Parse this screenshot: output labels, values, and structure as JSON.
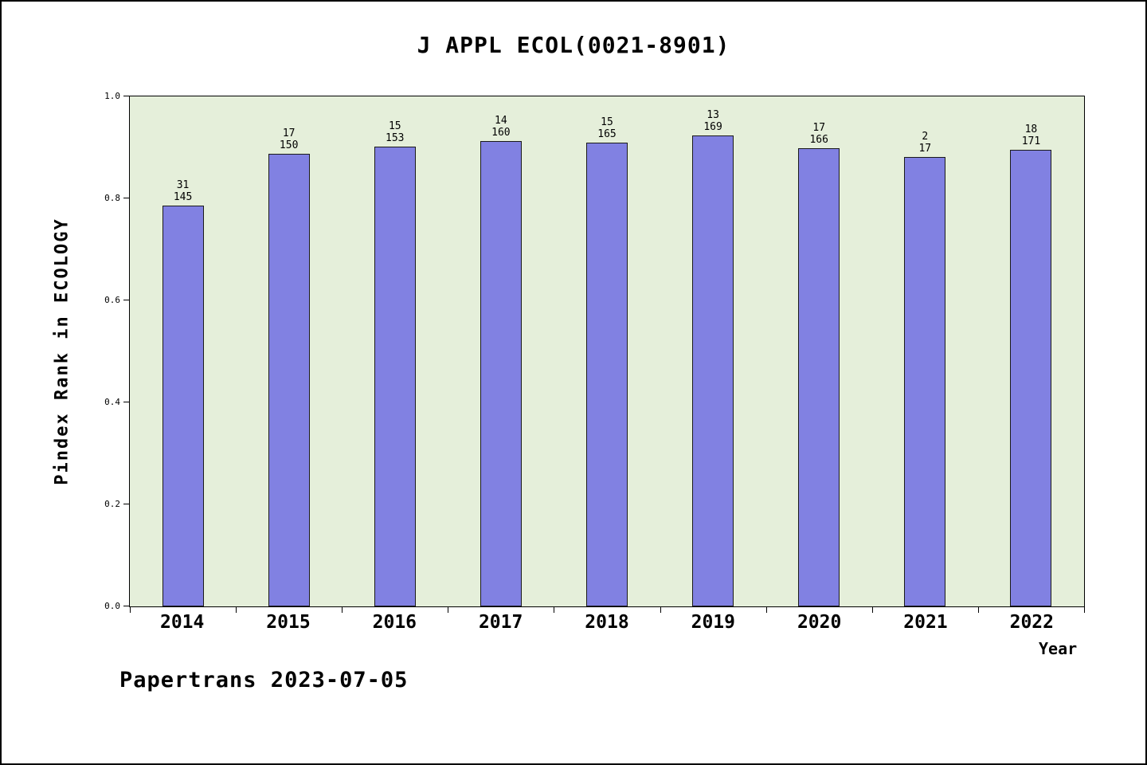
{
  "title": "J APPL ECOL(0021-8901)",
  "footer": "Papertrans 2023-07-05",
  "chart_data": {
    "type": "bar",
    "title": "J APPL ECOL(0021-8901)",
    "xlabel": "Year",
    "ylabel": "Pindex Rank in ECOLOGY",
    "ylim": [
      0.0,
      1.0
    ],
    "yticks": [
      0.0,
      0.2,
      0.4,
      0.6,
      0.8,
      1.0
    ],
    "ytick_labels": [
      "0.0",
      "0.2",
      "0.4",
      "0.6",
      "0.8",
      "1.0"
    ],
    "grid": false,
    "legend": "none",
    "categories": [
      "2014",
      "2015",
      "2016",
      "2017",
      "2018",
      "2019",
      "2020",
      "2021",
      "2022"
    ],
    "values": [
      0.786,
      0.887,
      0.902,
      0.913,
      0.909,
      0.923,
      0.898,
      0.882,
      0.895
    ],
    "bar_top_labels": [
      "31",
      "17",
      "15",
      "14",
      "15",
      "13",
      "17",
      "2",
      "18"
    ],
    "bar_bottom_labels": [
      "145",
      "150",
      "153",
      "160",
      "165",
      "169",
      "166",
      "17",
      "171"
    ],
    "bar_color": "#8181e2",
    "bar_edge_color": "#1a1a1a",
    "plot_background": "#e5efda",
    "outer_background": "#ffffff"
  }
}
